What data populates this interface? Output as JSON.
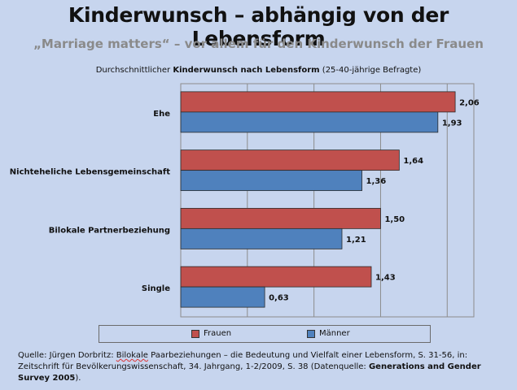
{
  "header": {
    "title": "Kinderwunsch – abhängig von der Lebensform",
    "subtitle": "„Marriage matters“ – vor allem für den Kinderwunsch der Frauen"
  },
  "caption": {
    "prefix": "Durchschnittlicher ",
    "bold": "Kinderwunsch nach Lebensform",
    "suffix": " (25-40-jährige Befragte)"
  },
  "colors": {
    "frauen": "#c0504d",
    "maenner": "#4f81bd"
  },
  "chart_data": {
    "type": "bar",
    "orientation": "horizontal",
    "categories": [
      "Ehe",
      "Nichteheliche Lebensgemeinschaft",
      "Bilokale Partnerbeziehung",
      "Single"
    ],
    "series": [
      {
        "name": "Frauen",
        "values": [
          2.06,
          1.64,
          1.5,
          1.43
        ],
        "labels": [
          "2,06",
          "1,64",
          "1,50",
          "1,43"
        ]
      },
      {
        "name": "Männer",
        "values": [
          1.93,
          1.36,
          1.21,
          0.63
        ],
        "labels": [
          "1,93",
          "1,36",
          "1,21",
          "0,63"
        ]
      }
    ],
    "xlim": [
      0,
      2.2
    ],
    "gridlines": [
      0.5,
      1.0,
      1.5,
      2.0
    ],
    "grid": true,
    "legend": "bottom"
  },
  "source": {
    "l1a": "Quelle: Jürgen Dorbritz: ",
    "l1b": "Bilokale",
    "l1c": " Paarbeziehungen – die Bedeutung und Vielfalt einer Lebensform, S. 31-56, in:",
    "l2a": "Zeitschrift für Bevölkerungswissenschaft, 34. Jahrgang, 1-2/2009, S. 38 (Datenquelle: ",
    "l2b": "Generations and Gender",
    "l3a": "Survey 2005",
    "l3b": ")."
  }
}
